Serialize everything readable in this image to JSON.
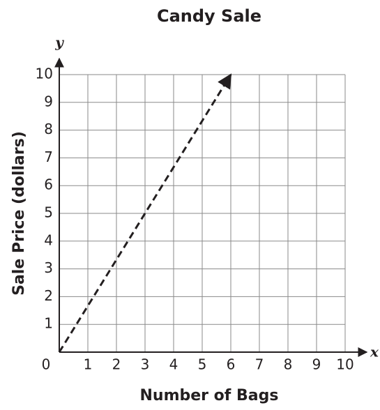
{
  "chart_data": {
    "type": "line",
    "title": "Candy Sale",
    "x_label": "Number of Bags",
    "y_label": "Sale Price (dollars)",
    "x_axis_letter": "x",
    "y_axis_letter": "y",
    "xlim": [
      0,
      10
    ],
    "ylim": [
      0,
      10
    ],
    "xticks": [
      0,
      1,
      2,
      3,
      4,
      5,
      6,
      7,
      8,
      9,
      10
    ],
    "yticks": [
      0,
      1,
      2,
      3,
      4,
      5,
      6,
      7,
      8,
      9,
      10
    ],
    "grid": true,
    "series": [
      {
        "x": [
          0,
          6
        ],
        "values": [
          0,
          10
        ],
        "color": "#231f20",
        "dashed": true,
        "arrow": true
      }
    ]
  }
}
